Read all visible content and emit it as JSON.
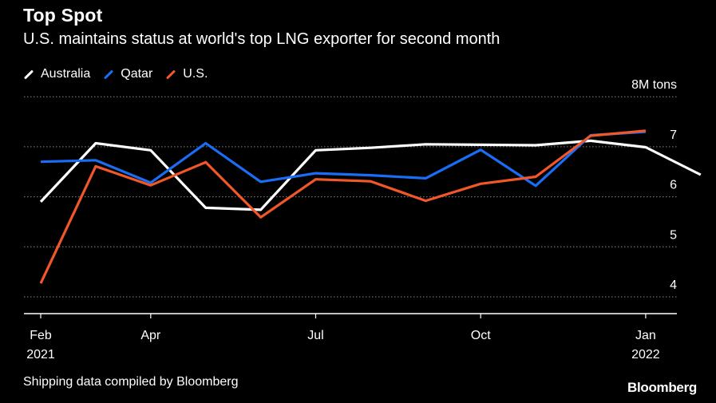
{
  "header": {
    "title": "Top Spot",
    "subtitle": "U.S. maintains status at world's top LNG exporter for second month"
  },
  "legend": [
    {
      "label": "Australia",
      "color": "#ffffff"
    },
    {
      "label": "Qatar",
      "color": "#1a6ef5"
    },
    {
      "label": "U.S.",
      "color": "#f2572a"
    }
  ],
  "footer": {
    "source": "Shipping data compiled by Bloomberg",
    "brand": "Bloomberg"
  },
  "chart_data": {
    "type": "line",
    "title": "Top Spot",
    "subtitle": "U.S. maintains status at world's top LNG exporter for second month",
    "x": [
      "2021-02",
      "2021-03",
      "2021-04",
      "2021-05",
      "2021-06",
      "2021-07",
      "2021-08",
      "2021-09",
      "2021-10",
      "2021-11",
      "2021-12",
      "2022-01",
      "2022-02"
    ],
    "x_ticks": [
      {
        "x": "2021-02",
        "label": "Feb",
        "sublabel": "2021"
      },
      {
        "x": "2021-04",
        "label": "Apr",
        "sublabel": ""
      },
      {
        "x": "2021-07",
        "label": "Jul",
        "sublabel": ""
      },
      {
        "x": "2021-10",
        "label": "Oct",
        "sublabel": ""
      },
      {
        "x": "2022-01",
        "label": "Jan",
        "sublabel": "2022"
      }
    ],
    "y_unit_label": "8M tons",
    "y_ticks": [
      {
        "value": 4,
        "label": "4"
      },
      {
        "value": 5,
        "label": "5"
      },
      {
        "value": 6,
        "label": "6"
      },
      {
        "value": 7,
        "label": "7"
      },
      {
        "value": 8,
        "label": "8M tons"
      }
    ],
    "ylim": [
      3.7,
      8
    ],
    "grid": true,
    "legend_position": "top-left",
    "series": [
      {
        "name": "Australia",
        "color": "#ffffff",
        "values": [
          5.9,
          7.07,
          6.93,
          5.78,
          5.74,
          6.93,
          6.98,
          7.05,
          7.04,
          7.03,
          7.12,
          6.99,
          6.44
        ]
      },
      {
        "name": "Qatar",
        "color": "#1a6ef5",
        "values": [
          6.7,
          6.73,
          6.28,
          7.07,
          6.3,
          6.47,
          6.43,
          6.37,
          6.94,
          6.22,
          7.23,
          7.3,
          null
        ]
      },
      {
        "name": "U.S.",
        "color": "#f2572a",
        "values": [
          4.27,
          6.61,
          6.23,
          6.69,
          5.59,
          6.35,
          6.31,
          5.92,
          6.26,
          6.4,
          7.22,
          7.32,
          null
        ]
      }
    ]
  }
}
